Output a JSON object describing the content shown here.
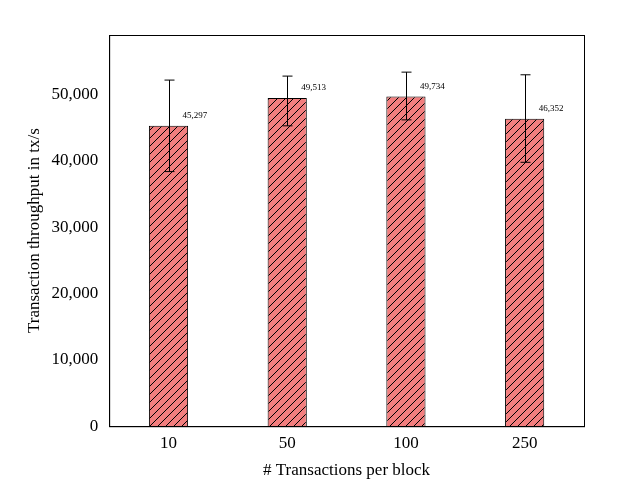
{
  "chart_data": {
    "type": "bar",
    "x_label": "# Transactions per block",
    "y_label": "Transaction throughput in tx/s",
    "categories": [
      "10",
      "50",
      "100",
      "250"
    ],
    "values": [
      45297,
      49513,
      49734,
      46352
    ],
    "value_labels": [
      "45,297",
      "49,513",
      "49,734",
      "46,352"
    ],
    "error_low": [
      38400,
      45300,
      46200,
      39800
    ],
    "error_high": [
      52200,
      52800,
      53400,
      53000
    ],
    "color": "#f27e7e",
    "ylim": [
      0,
      59000
    ],
    "yticks": [
      0,
      {
        "value": 10000,
        "label": "10,000"
      },
      {
        "value": 20000,
        "label": "20,000"
      },
      {
        "value": 30000,
        "label": "30,000"
      },
      {
        "value": 40000,
        "label": "40,000"
      },
      {
        "value": 50000,
        "label": "50,000"
      }
    ],
    "grid": false,
    "data_labels": true
  }
}
